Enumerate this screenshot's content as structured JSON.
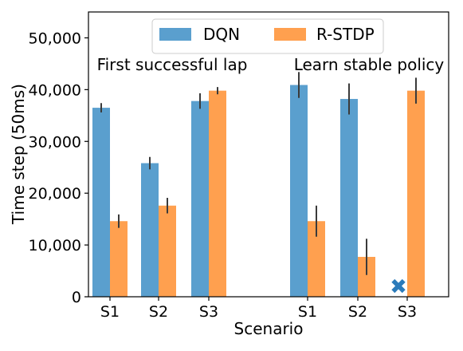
{
  "chart_data": {
    "type": "bar",
    "xlabel": "Scenario",
    "ylabel": "Time step (50ms)",
    "ylim": [
      0,
      55000
    ],
    "yticks": [
      0,
      10000,
      20000,
      30000,
      40000,
      50000
    ],
    "ytick_labels": [
      "0",
      "10,000",
      "20,000",
      "30,000",
      "40,000",
      "50,000"
    ],
    "grid": false,
    "legend_position": "top-center",
    "colors": {
      "DQN": "#5a9fce",
      "R-STDP": "#ffa04f",
      "marker": "#2b7bba",
      "error": "#3a3a3a"
    },
    "groups": [
      {
        "annotation": "First successful lap",
        "categories": [
          "S1",
          "S2",
          "S3"
        ],
        "series": [
          {
            "name": "DQN",
            "values": [
              36500,
              25800,
              37800
            ],
            "errors": [
              900,
              1200,
              1500
            ]
          },
          {
            "name": "R-STDP",
            "values": [
              14600,
              17600,
              39800
            ],
            "errors": [
              1300,
              1500,
              700
            ]
          }
        ]
      },
      {
        "annotation": "Learn stable policy",
        "categories": [
          "S1",
          "S2",
          "S3"
        ],
        "series": [
          {
            "name": "DQN",
            "values": [
              40900,
              38200,
              null
            ],
            "errors": [
              2500,
              3000,
              null
            ]
          },
          {
            "name": "R-STDP",
            "values": [
              14600,
              7700,
              39800
            ],
            "errors": [
              3000,
              3500,
              2500
            ]
          }
        ],
        "failed_marker": {
          "series": "DQN",
          "category": "S3",
          "symbol": "✖",
          "y": 2000
        }
      }
    ]
  }
}
